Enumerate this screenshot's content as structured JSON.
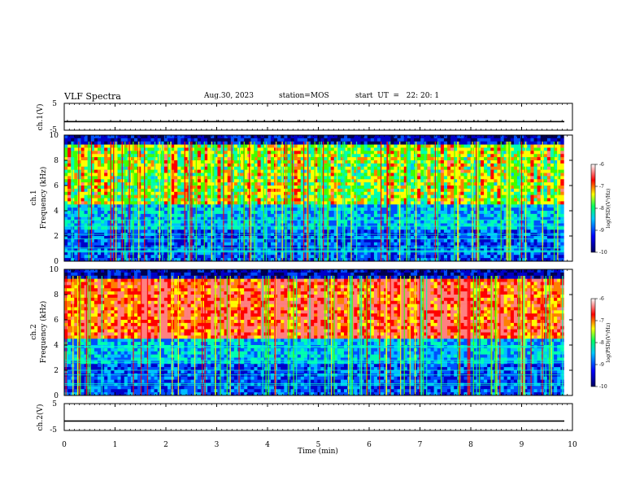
{
  "header": {
    "title": "VLF Spectra",
    "date": "Aug.30, 2023",
    "station": "station=MOS",
    "start": "start  UT  =   22: 20: 1"
  },
  "chart_data": [
    {
      "type": "line",
      "name_label": "ch.1(V)",
      "ylabel": "ch.1(V)",
      "yticks": [
        "5",
        "-5"
      ],
      "ylim": [
        -5,
        5
      ],
      "xlim": [
        0,
        10
      ],
      "level": -1.8
    },
    {
      "type": "heatmap",
      "ylabel_top": "ch.1",
      "ylabel": "Frequency (kHz)",
      "xlim": [
        0,
        10
      ],
      "ylim": [
        0,
        10
      ],
      "yticks": [
        "0",
        "2",
        "4",
        "6",
        "8",
        "10"
      ],
      "colorbar": {
        "label": "log(PSD)(V²/Hz)",
        "ticks": [
          "-6",
          "-7",
          "-8",
          "-9",
          "-10"
        ],
        "range": [
          -10,
          -6
        ]
      },
      "data_end_min": 9.83
    },
    {
      "type": "heatmap",
      "ylabel_top": "ch.2",
      "ylabel": "Frequency (kHz)",
      "xlim": [
        0,
        10
      ],
      "ylim": [
        0,
        10
      ],
      "yticks": [
        "0",
        "2",
        "4",
        "6",
        "8",
        "10"
      ],
      "colorbar": {
        "label": "log(PSD)(V²/Hz)",
        "ticks": [
          "-6",
          "-7",
          "-8",
          "-9",
          "-10"
        ],
        "range": [
          -10,
          -6
        ]
      },
      "data_end_min": 9.83
    },
    {
      "type": "line",
      "name_label": "ch.2(V)",
      "ylabel": "ch.2(V)",
      "yticks": [
        "5",
        "-5"
      ],
      "ylim": [
        -5,
        5
      ],
      "xlim": [
        0,
        10
      ],
      "level": -1.5
    }
  ],
  "x_axis": {
    "label": "Time (min)",
    "ticks": [
      "0",
      "1",
      "2",
      "3",
      "4",
      "5",
      "6",
      "7",
      "8",
      "9",
      "10"
    ]
  },
  "colors": {
    "colormap": [
      "#000060",
      "#0000ff",
      "#00c0ff",
      "#00ff80",
      "#ffff00",
      "#ff0000",
      "#ffffff"
    ]
  }
}
